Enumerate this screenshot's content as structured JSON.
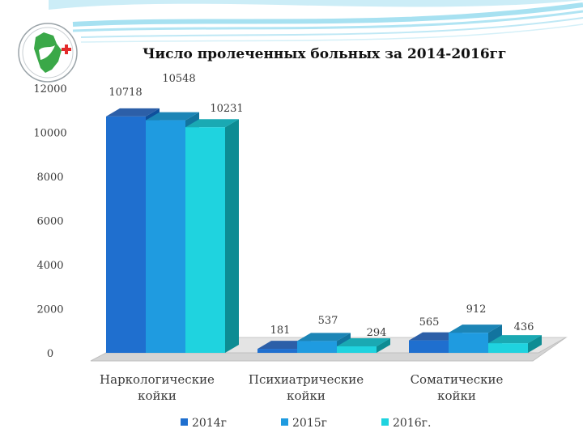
{
  "title": "Число пролеченных больных за 2014-2016гг",
  "colors": {
    "series_2014": "#1f6fcf",
    "series_2015": "#1f9be0",
    "series_2016": "#1fd3df",
    "wave": "#5ec8e5",
    "logo_green": "#3aa848",
    "logo_red": "#e32b2b"
  },
  "chart_data": {
    "type": "bar",
    "categories": [
      "Наркологические койки",
      "Психиатрические койки",
      "Соматические койки"
    ],
    "category_lines": [
      [
        "Наркологические",
        "койки"
      ],
      [
        "Психиатрические",
        "койки"
      ],
      [
        "Соматические",
        "койки"
      ]
    ],
    "series": [
      {
        "name": "2014г",
        "values": [
          10718,
          181,
          565
        ]
      },
      {
        "name": "2015г",
        "values": [
          10548,
          537,
          912
        ]
      },
      {
        "name": "2016г.",
        "values": [
          10231,
          294,
          436
        ]
      }
    ],
    "yticks": [
      0,
      2000,
      4000,
      6000,
      8000,
      10000,
      12000
    ],
    "ylim": [
      0,
      12000
    ],
    "legend_position": "bottom"
  }
}
